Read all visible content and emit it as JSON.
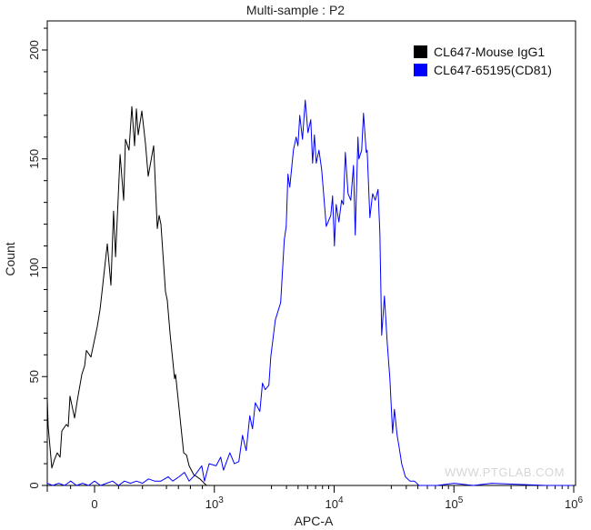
{
  "chart_data": {
    "type": "line",
    "title": "Multi-sample : P2",
    "xlabel": "APC-A",
    "ylabel": "Count",
    "x_scale": "biexponential (linear below 1000, log above)",
    "xlim": [
      -395,
      1000000
    ],
    "ylim": [
      0,
      214
    ],
    "y_ticks": [
      0,
      50,
      100,
      150,
      200
    ],
    "x_ticks": [
      {
        "value": 0,
        "base": "0",
        "exp": ""
      },
      {
        "value": 1000,
        "base": "10",
        "exp": "3"
      },
      {
        "value": 10000,
        "base": "10",
        "exp": "4"
      },
      {
        "value": 100000,
        "base": "10",
        "exp": "5"
      },
      {
        "value": 1000000,
        "base": "10",
        "exp": "6"
      }
    ],
    "grid": false,
    "legend_position": "top-right",
    "watermark": "WWW.PTGLAB.COM",
    "series": [
      {
        "name": "CL647-Mouse IgG1",
        "color": "#000000",
        "points": [
          [
            -395,
            40
          ],
          [
            -387,
            27
          ],
          [
            -357,
            8
          ],
          [
            -334,
            12
          ],
          [
            -311,
            15
          ],
          [
            -288,
            13
          ],
          [
            -273,
            25
          ],
          [
            -235,
            28
          ],
          [
            -220,
            27
          ],
          [
            -205,
            41
          ],
          [
            -167,
            31
          ],
          [
            -144,
            39
          ],
          [
            -106,
            51
          ],
          [
            -83,
            55
          ],
          [
            -68,
            62
          ],
          [
            -30,
            59
          ],
          [
            23,
            73
          ],
          [
            46,
            81
          ],
          [
            68,
            92
          ],
          [
            106,
            111
          ],
          [
            137,
            92
          ],
          [
            159,
            126
          ],
          [
            175,
            105
          ],
          [
            213,
            152
          ],
          [
            243,
            131
          ],
          [
            258,
            159
          ],
          [
            288,
            154
          ],
          [
            311,
            174
          ],
          [
            334,
            156
          ],
          [
            349,
            173
          ],
          [
            364,
            161
          ],
          [
            395,
            172
          ],
          [
            425,
            157
          ],
          [
            448,
            142
          ],
          [
            493,
            156
          ],
          [
            524,
            118
          ],
          [
            539,
            124
          ],
          [
            554,
            120
          ],
          [
            592,
            89
          ],
          [
            607,
            85
          ],
          [
            630,
            70
          ],
          [
            668,
            49
          ],
          [
            676,
            51
          ],
          [
            744,
            15
          ],
          [
            767,
            14
          ],
          [
            789,
            9
          ],
          [
            827,
            5
          ],
          [
            880,
            3
          ],
          [
            934,
            0
          ],
          [
            1091,
            0
          ]
        ]
      },
      {
        "name": "CL647-65195(CD81)",
        "color": "#0000ff",
        "points": [
          [
            -395,
            1
          ],
          [
            -350,
            0
          ],
          [
            -300,
            1
          ],
          [
            -250,
            0
          ],
          [
            -200,
            2
          ],
          [
            -150,
            0
          ],
          [
            -100,
            1
          ],
          [
            -50,
            0
          ],
          [
            0,
            2
          ],
          [
            50,
            0
          ],
          [
            100,
            1
          ],
          [
            150,
            2
          ],
          [
            200,
            0
          ],
          [
            250,
            2
          ],
          [
            300,
            1
          ],
          [
            350,
            2
          ],
          [
            400,
            1
          ],
          [
            450,
            3
          ],
          [
            501,
            2
          ],
          [
            554,
            2
          ],
          [
            615,
            4
          ],
          [
            653,
            2
          ],
          [
            706,
            4
          ],
          [
            751,
            6
          ],
          [
            789,
            2
          ],
          [
            842,
            5
          ],
          [
            895,
            9
          ],
          [
            918,
            2
          ],
          [
            956,
            10
          ],
          [
            1035,
            9
          ],
          [
            1130,
            13
          ],
          [
            1191,
            7
          ],
          [
            1346,
            15
          ],
          [
            1469,
            10
          ],
          [
            1603,
            11
          ],
          [
            1719,
            23
          ],
          [
            1845,
            16
          ],
          [
            1977,
            32
          ],
          [
            2083,
            26
          ],
          [
            2197,
            38
          ],
          [
            2397,
            34
          ],
          [
            2525,
            47
          ],
          [
            2661,
            44
          ],
          [
            2851,
            46
          ],
          [
            2956,
            59
          ],
          [
            3226,
            76
          ],
          [
            3581,
            84
          ],
          [
            3838,
            113
          ],
          [
            3978,
            119
          ],
          [
            4118,
            143
          ],
          [
            4265,
            137
          ],
          [
            4571,
            154
          ],
          [
            4819,
            160
          ],
          [
            4990,
            156
          ],
          [
            5168,
            170
          ],
          [
            5447,
            159
          ],
          [
            5740,
            177
          ],
          [
            6050,
            162
          ],
          [
            6377,
            168
          ],
          [
            6604,
            148
          ],
          [
            6839,
            161
          ],
          [
            7083,
            148
          ],
          [
            7464,
            154
          ],
          [
            7866,
            145
          ],
          [
            8590,
            119
          ],
          [
            9370,
            124
          ],
          [
            9700,
            133
          ],
          [
            10050,
            110
          ],
          [
            10400,
            129
          ],
          [
            10960,
            121
          ],
          [
            11550,
            131
          ],
          [
            11960,
            129
          ],
          [
            12390,
            153
          ],
          [
            13060,
            134
          ],
          [
            13760,
            131
          ],
          [
            14500,
            147
          ],
          [
            15010,
            115
          ],
          [
            15820,
            160
          ],
          [
            16100,
            150
          ],
          [
            16970,
            154
          ],
          [
            17580,
            171
          ],
          [
            18520,
            153
          ],
          [
            18850,
            154
          ],
          [
            19860,
            123
          ],
          [
            20930,
            134
          ],
          [
            22050,
            131
          ],
          [
            23240,
            136
          ],
          [
            24070,
            116
          ],
          [
            24930,
            69
          ],
          [
            26270,
            87
          ],
          [
            27680,
            66
          ],
          [
            29170,
            49
          ],
          [
            30740,
            24
          ],
          [
            31840,
            35
          ],
          [
            33550,
            23
          ],
          [
            34750,
            18
          ],
          [
            36620,
            10
          ],
          [
            39260,
            4
          ],
          [
            42860,
            2
          ],
          [
            46780,
            2
          ],
          [
            51070,
            0
          ],
          [
            72300,
            0
          ],
          [
            100000,
            1
          ],
          [
            145600,
            0
          ],
          [
            206500,
            1
          ],
          [
            589000,
            0
          ],
          [
            980000,
            0
          ]
        ]
      }
    ]
  }
}
